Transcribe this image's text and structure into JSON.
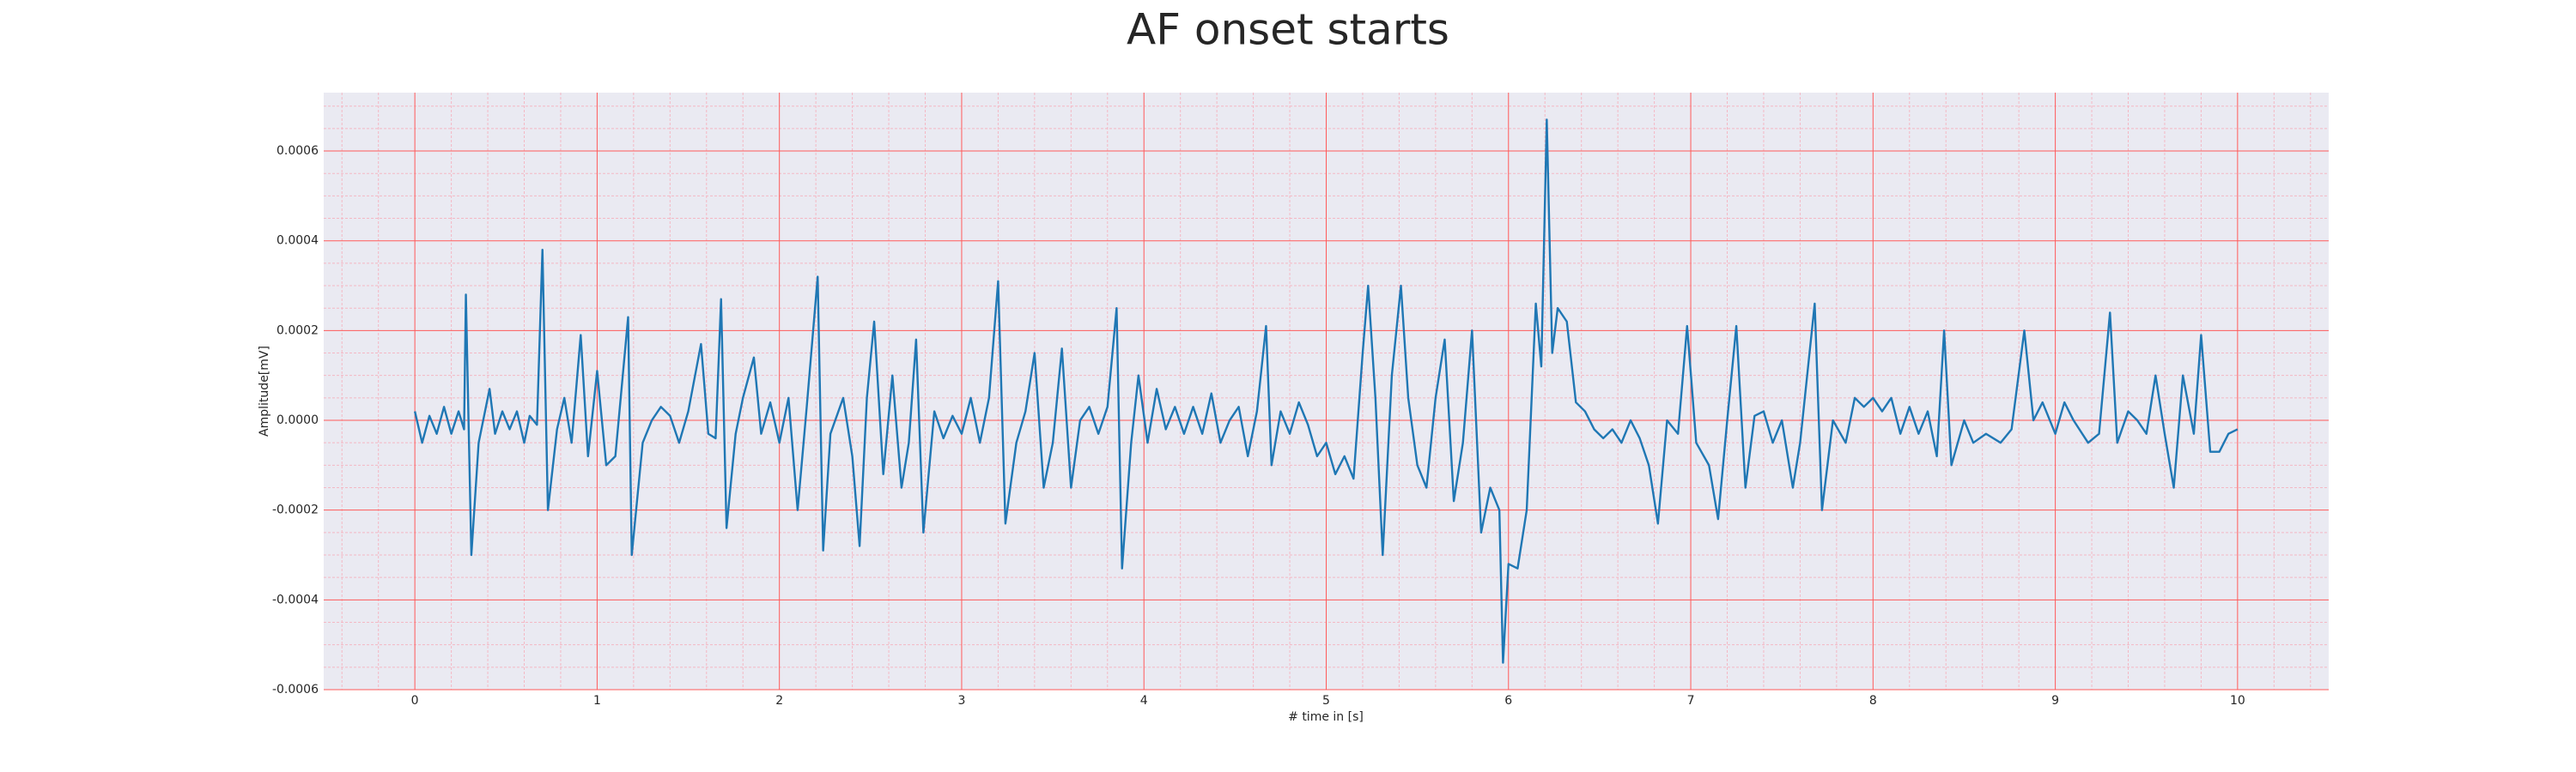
{
  "chart_data": {
    "type": "line",
    "title": "AF onset starts",
    "xlabel": "# time in [s]",
    "ylabel": "Amplitude[mV]",
    "color": "#1f77b4",
    "background": "#eaeaf2",
    "grid": true,
    "grid_color": "#ff5a5a",
    "minor_grid_color": "#f4b8c4",
    "xlim": [
      -0.5,
      10.5
    ],
    "ylim": [
      -0.0006,
      0.00073
    ],
    "xticks": [
      0,
      1,
      2,
      3,
      4,
      5,
      6,
      7,
      8,
      9,
      10
    ],
    "yticks": [
      -0.0006,
      -0.0004,
      -0.0002,
      {
        "value": 0,
        "label": "0.0000"
      },
      0.0002,
      0.0004,
      0.0006
    ],
    "xticks_minor": [
      -0.4,
      -0.2,
      0.2,
      0.4,
      0.6,
      0.8,
      1.2,
      1.4,
      1.6,
      1.8,
      2.2,
      2.4,
      2.6,
      2.8,
      3.2,
      3.4,
      3.6,
      3.8,
      4.2,
      4.4,
      4.6,
      4.8,
      5.2,
      5.4,
      5.6,
      5.8,
      6.2,
      6.4,
      6.6,
      6.8,
      7.2,
      7.4,
      7.6,
      7.8,
      8.2,
      8.4,
      8.6,
      8.8,
      9.2,
      9.4,
      9.6,
      9.8,
      10.2,
      10.4
    ],
    "yticks_minor": [
      -0.00055,
      -0.0005,
      -0.00045,
      -0.00035,
      -0.0003,
      -0.00025,
      -0.00015,
      -0.0001,
      -5e-05,
      5e-05,
      0.0001,
      0.00015,
      0.00025,
      0.0003,
      0.00035,
      0.00045,
      0.0005,
      0.00055,
      0.00065,
      0.0007
    ],
    "x": [
      0,
      0.04,
      0.08,
      0.12,
      0.16,
      0.2,
      0.24,
      0.27,
      0.28,
      0.31,
      0.35,
      0.38,
      0.41,
      0.44,
      0.48,
      0.52,
      0.56,
      0.6,
      0.63,
      0.67,
      0.7,
      0.73,
      0.78,
      0.82,
      0.86,
      0.91,
      0.95,
      1.0,
      1.05,
      1.1,
      1.17,
      1.19,
      1.25,
      1.3,
      1.35,
      1.4,
      1.45,
      1.5,
      1.57,
      1.61,
      1.65,
      1.68,
      1.71,
      1.76,
      1.8,
      1.86,
      1.9,
      1.95,
      2.0,
      2.05,
      2.1,
      2.15,
      2.21,
      2.24,
      2.28,
      2.35,
      2.4,
      2.44,
      2.48,
      2.52,
      2.57,
      2.62,
      2.67,
      2.71,
      2.75,
      2.79,
      2.85,
      2.9,
      2.95,
      3.0,
      3.05,
      3.1,
      3.15,
      3.2,
      3.24,
      3.3,
      3.35,
      3.4,
      3.45,
      3.5,
      3.55,
      3.6,
      3.65,
      3.7,
      3.75,
      3.8,
      3.85,
      3.88,
      3.93,
      3.97,
      4.02,
      4.07,
      4.12,
      4.17,
      4.22,
      4.27,
      4.32,
      4.37,
      4.42,
      4.47,
      4.52,
      4.57,
      4.62,
      4.67,
      4.7,
      4.75,
      4.8,
      4.85,
      4.9,
      4.95,
      5.0,
      5.05,
      5.1,
      5.15,
      5.2,
      5.23,
      5.27,
      5.31,
      5.36,
      5.41,
      5.45,
      5.5,
      5.55,
      5.6,
      5.65,
      5.7,
      5.75,
      5.8,
      5.85,
      5.9,
      5.95,
      5.97,
      6.0,
      6.05,
      6.1,
      6.15,
      6.18,
      6.21,
      6.24,
      6.27,
      6.32,
      6.37,
      6.42,
      6.47,
      6.52,
      6.57,
      6.62,
      6.67,
      6.72,
      6.77,
      6.82,
      6.87,
      6.93,
      6.98,
      7.03,
      7.1,
      7.15,
      7.2,
      7.25,
      7.3,
      7.35,
      7.4,
      7.45,
      7.5,
      7.56,
      7.6,
      7.68,
      7.72,
      7.78,
      7.85,
      7.9,
      7.95,
      8.0,
      8.05,
      8.1,
      8.15,
      8.2,
      8.25,
      8.3,
      8.35,
      8.39,
      8.43,
      8.5,
      8.55,
      8.62,
      8.7,
      8.76,
      8.83,
      8.88,
      8.93,
      9.0,
      9.05,
      9.1,
      9.18,
      9.24,
      9.3,
      9.34,
      9.4,
      9.45,
      9.5,
      9.55,
      9.6,
      9.65,
      9.7,
      9.76,
      9.8,
      9.85,
      9.9,
      9.95,
      10.0
    ],
    "values": [
      2e-05,
      -5e-05,
      1e-05,
      -3e-05,
      3e-05,
      -3e-05,
      2e-05,
      -2e-05,
      0.00028,
      -0.0003,
      -5e-05,
      1e-05,
      7e-05,
      -3e-05,
      2e-05,
      -2e-05,
      2e-05,
      -5e-05,
      1e-05,
      -1e-05,
      0.00038,
      -0.0002,
      -2e-05,
      5e-05,
      -5e-05,
      0.00019,
      -8e-05,
      0.00011,
      -0.0001,
      -8e-05,
      0.00023,
      -0.0003,
      -5e-05,
      0,
      3e-05,
      1e-05,
      -5e-05,
      2e-05,
      0.00017,
      -3e-05,
      -4e-05,
      0.00027,
      -0.00024,
      -3e-05,
      5e-05,
      0.00014,
      -3e-05,
      4e-05,
      -5e-05,
      5e-05,
      -0.0002,
      3e-05,
      0.00032,
      -0.00029,
      -3e-05,
      5e-05,
      -8e-05,
      -0.00028,
      5e-05,
      0.00022,
      -0.00012,
      0.0001,
      -0.00015,
      -5e-05,
      0.00018,
      -0.00025,
      2e-05,
      -4e-05,
      1e-05,
      -3e-05,
      5e-05,
      -5e-05,
      5e-05,
      0.00031,
      -0.00023,
      -5e-05,
      2e-05,
      0.00015,
      -0.00015,
      -5e-05,
      0.00016,
      -0.00015,
      0,
      3e-05,
      -3e-05,
      3e-05,
      0.00025,
      -0.00033,
      -5e-05,
      0.0001,
      -5e-05,
      7e-05,
      -2e-05,
      3e-05,
      -3e-05,
      3e-05,
      -3e-05,
      6e-05,
      -5e-05,
      0,
      3e-05,
      -8e-05,
      2e-05,
      0.00021,
      -0.0001,
      2e-05,
      -3e-05,
      4e-05,
      -1e-05,
      -8e-05,
      -5e-05,
      -0.00012,
      -8e-05,
      -0.00013,
      0.00015,
      0.0003,
      5e-05,
      -0.0003,
      0.0001,
      0.0003,
      5e-05,
      -0.0001,
      -0.00015,
      5e-05,
      0.00018,
      -0.00018,
      -5e-05,
      0.0002,
      -0.00025,
      -0.00015,
      -0.0002,
      -0.00054,
      -0.00032,
      -0.00033,
      -0.0002,
      0.00026,
      0.00012,
      0.00067,
      0.00015,
      0.00025,
      0.00022,
      4e-05,
      2e-05,
      -2e-05,
      -4e-05,
      -2e-05,
      -5e-05,
      0,
      -4e-05,
      -0.0001,
      -0.00023,
      0,
      -3e-05,
      0.00021,
      -5e-05,
      -0.0001,
      -0.00022,
      0,
      0.00021,
      -0.00015,
      1e-05,
      2e-05,
      -5e-05,
      0,
      -0.00015,
      -5e-05,
      0.00026,
      -0.0002,
      0,
      -5e-05,
      5e-05,
      3e-05,
      5e-05,
      2e-05,
      5e-05,
      -3e-05,
      3e-05,
      -3e-05,
      2e-05,
      -8e-05,
      0.0002,
      -0.0001,
      0,
      -5e-05,
      -3e-05,
      -5e-05,
      -2e-05,
      0.0002,
      0,
      4e-05,
      -3e-05,
      4e-05,
      0,
      -5e-05,
      -3e-05,
      0.00024,
      -5e-05,
      2e-05,
      0,
      -3e-05,
      0.0001,
      -3e-05,
      -0.00015,
      0.0001,
      -3e-05,
      0.00019,
      -7e-05,
      -7e-05,
      -3e-05,
      -2e-05
    ]
  }
}
